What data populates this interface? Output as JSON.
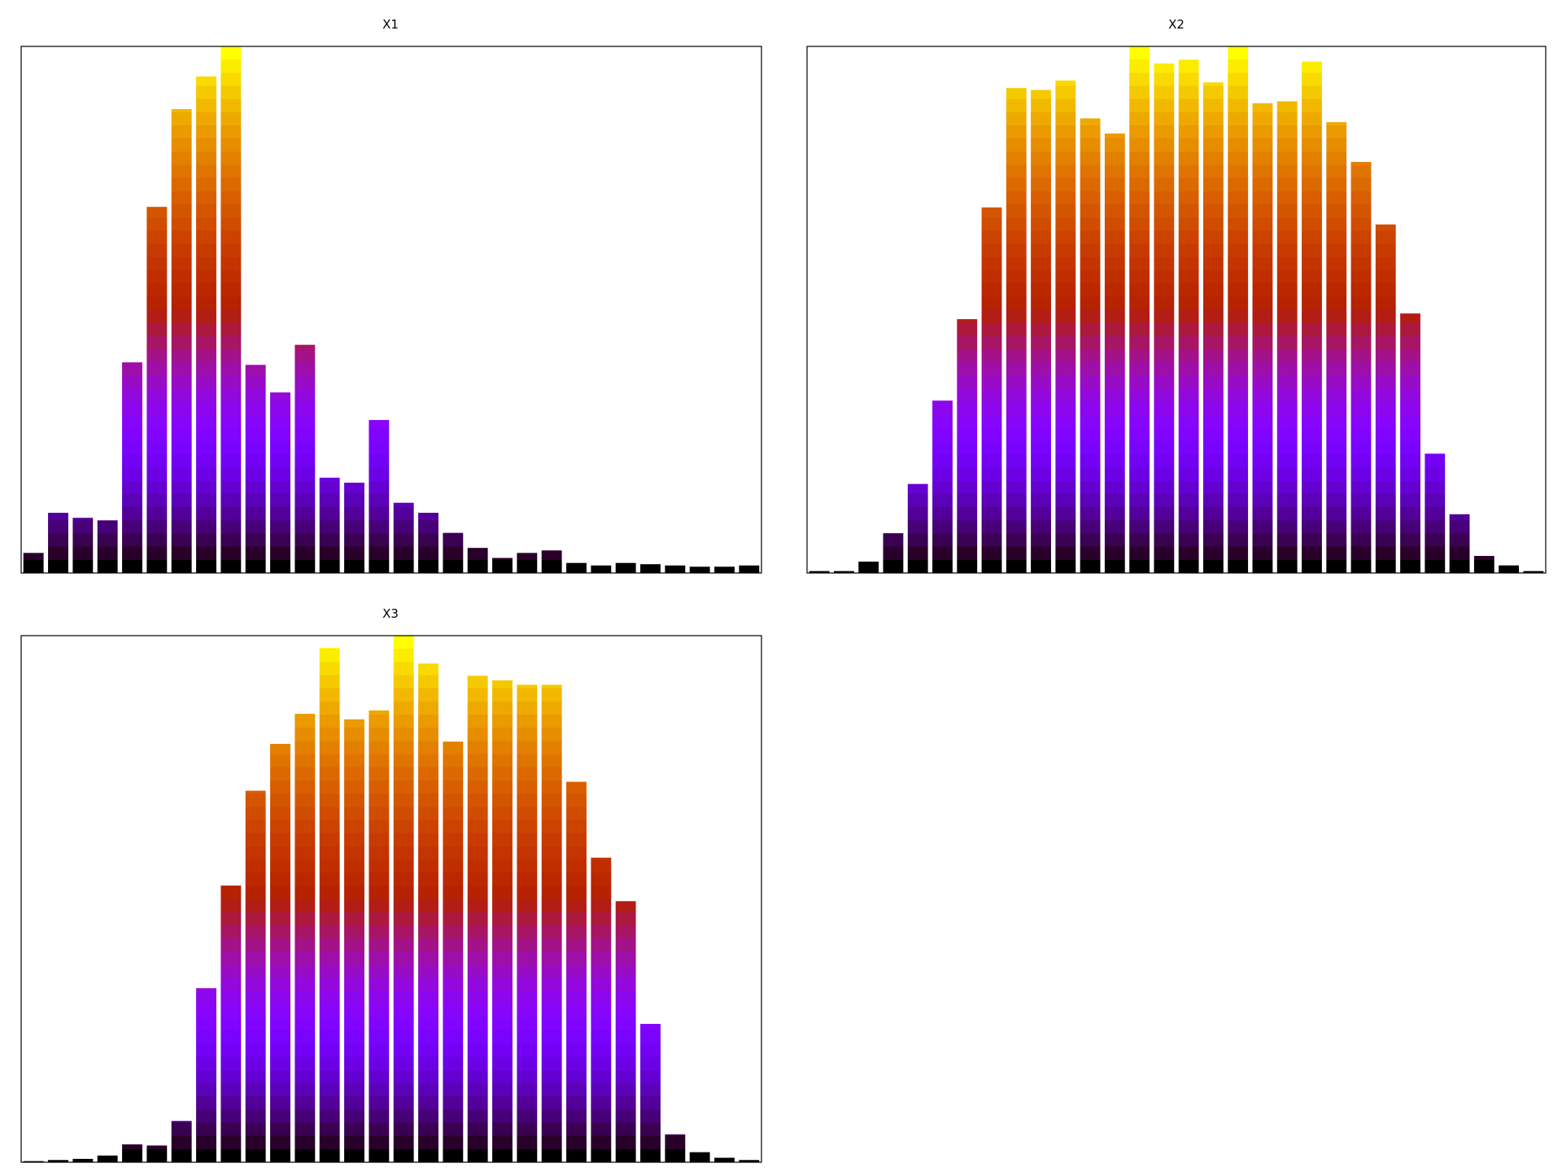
{
  "chart_data": [
    {
      "type": "bar",
      "title": "X1",
      "colormap": "gnuplot",
      "values": [
        8,
        24,
        22,
        21,
        84,
        146,
        185,
        198,
        210,
        83,
        72,
        91,
        38,
        36,
        61,
        28,
        24,
        16,
        10,
        6,
        8,
        9,
        4,
        3,
        4,
        3.5,
        3,
        2.5,
        2.5,
        3
      ],
      "ylim": [
        0,
        210
      ]
    },
    {
      "type": "bar",
      "title": "X2",
      "colormap": "gnuplot",
      "values": [
        1,
        1,
        6,
        21,
        47,
        91,
        134,
        193,
        256,
        255,
        260,
        240,
        232,
        278,
        269,
        271,
        259,
        278,
        248,
        249,
        270,
        238,
        217,
        184,
        137,
        63,
        31,
        9,
        4,
        1
      ],
      "ylim": [
        0,
        278
      ]
    },
    {
      "type": "bar",
      "title": "X3",
      "colormap": "gnuplot",
      "values": [
        1,
        2,
        3,
        6,
        16,
        15,
        37,
        156,
        248,
        333,
        375,
        402,
        461,
        397,
        405,
        472,
        447,
        377,
        436,
        432,
        428,
        428,
        341,
        273,
        234,
        124,
        25,
        9,
        4,
        2
      ],
      "ylim": [
        0,
        472
      ]
    }
  ]
}
